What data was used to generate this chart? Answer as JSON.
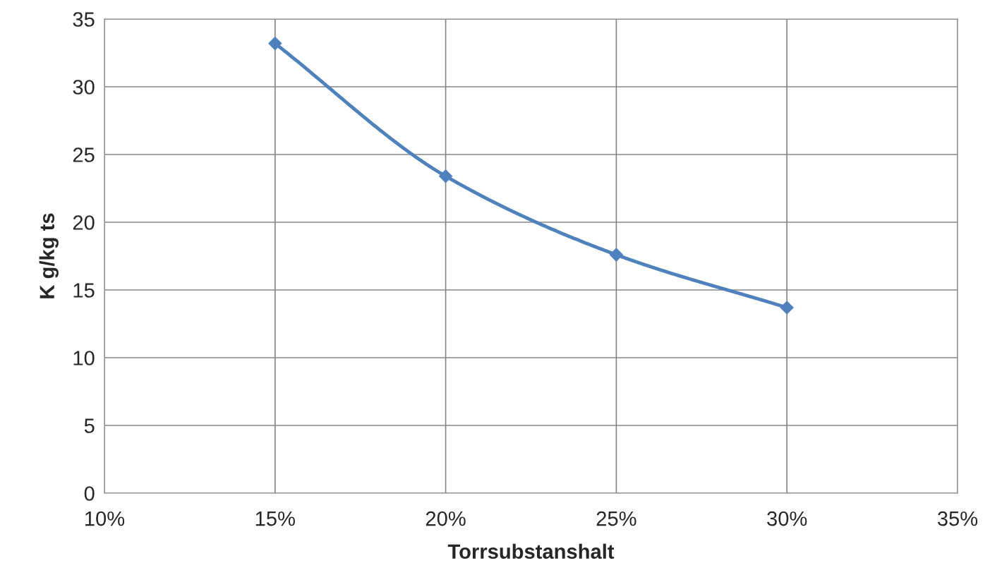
{
  "chart_data": {
    "type": "line",
    "xlabel": "Torrsubstanshalt",
    "ylabel": "K g/kg ts",
    "x": [
      15,
      20,
      25,
      30
    ],
    "series": [
      {
        "color": "#4f81bd",
        "values": [
          33.2,
          23.4,
          17.6,
          13.7
        ]
      }
    ],
    "xlim": [
      10,
      35
    ],
    "xticks": [
      {
        "value": 10,
        "label": "10%"
      },
      {
        "value": 15,
        "label": "15%"
      },
      {
        "value": 20,
        "label": "20%"
      },
      {
        "value": 25,
        "label": "25%"
      },
      {
        "value": 30,
        "label": "30%"
      },
      {
        "value": 35,
        "label": "35%"
      }
    ],
    "ylim": [
      0,
      35
    ],
    "yticks": [
      0,
      5,
      10,
      15,
      20,
      25,
      30,
      35
    ],
    "grid": true,
    "marker": "diamond",
    "line_style": "solid"
  }
}
